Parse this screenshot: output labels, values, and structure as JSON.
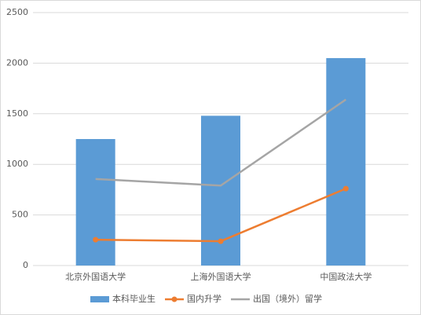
{
  "chart_data": {
    "type": "bar",
    "categories": [
      "北京外国语大学",
      "上海外国语大学",
      "中国政法大学"
    ],
    "series": [
      {
        "name": "本科毕业生",
        "type": "bar",
        "color": "#5b9bd5",
        "values": [
          1250,
          1480,
          2050
        ]
      },
      {
        "name": "国内升学",
        "type": "line",
        "markers": true,
        "color": "#ed7d31",
        "values": [
          255,
          240,
          760
        ]
      },
      {
        "name": "出国（境外）留学",
        "type": "line",
        "markers": false,
        "color": "#a5a5a5",
        "values": [
          855,
          790,
          1640
        ]
      }
    ],
    "ylim": [
      0,
      2500
    ],
    "yticks": [
      0,
      500,
      1000,
      1500,
      2000,
      2500
    ],
    "grid": true,
    "legend": "bottom"
  }
}
